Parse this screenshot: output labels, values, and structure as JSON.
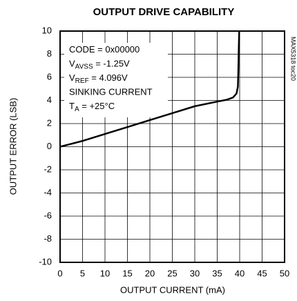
{
  "chart_data": {
    "type": "line",
    "title": "OUTPUT DRIVE CAPABILITY",
    "x_label": "OUTPUT CURRENT (mA)",
    "y_label": "OUTPUT ERROR (LSB)",
    "side_note": "MAX5318 toc20",
    "annotations": [
      [
        "CODE = 0x00000"
      ],
      [
        "V",
        "AVSS",
        " = -1.25V"
      ],
      [
        "V",
        "REF",
        " = 4.096V"
      ],
      [
        "SINKING CURRENT"
      ],
      [
        "T",
        "A",
        " = +25°C"
      ]
    ],
    "x": [
      0,
      2,
      5,
      10,
      15,
      20,
      25,
      30,
      35,
      37,
      38.5,
      39.3,
      39.6,
      39.7,
      39.8,
      39.9
    ],
    "series": [
      {
        "name": "OUTPUT ERROR",
        "color": "#000000",
        "values": [
          0,
          0.2,
          0.5,
          1.1,
          1.7,
          2.3,
          2.9,
          3.5,
          3.9,
          4.05,
          4.25,
          4.6,
          5.2,
          6.5,
          8.5,
          10
        ]
      }
    ],
    "xlim": [
      0,
      50
    ],
    "xticks": [
      0,
      5,
      10,
      15,
      20,
      25,
      30,
      35,
      40,
      45,
      50
    ],
    "ylim": [
      -10,
      10
    ],
    "yticks": [
      -10,
      -8,
      -6,
      -4,
      -2,
      0,
      2,
      4,
      6,
      8,
      10
    ],
    "grid": true
  }
}
